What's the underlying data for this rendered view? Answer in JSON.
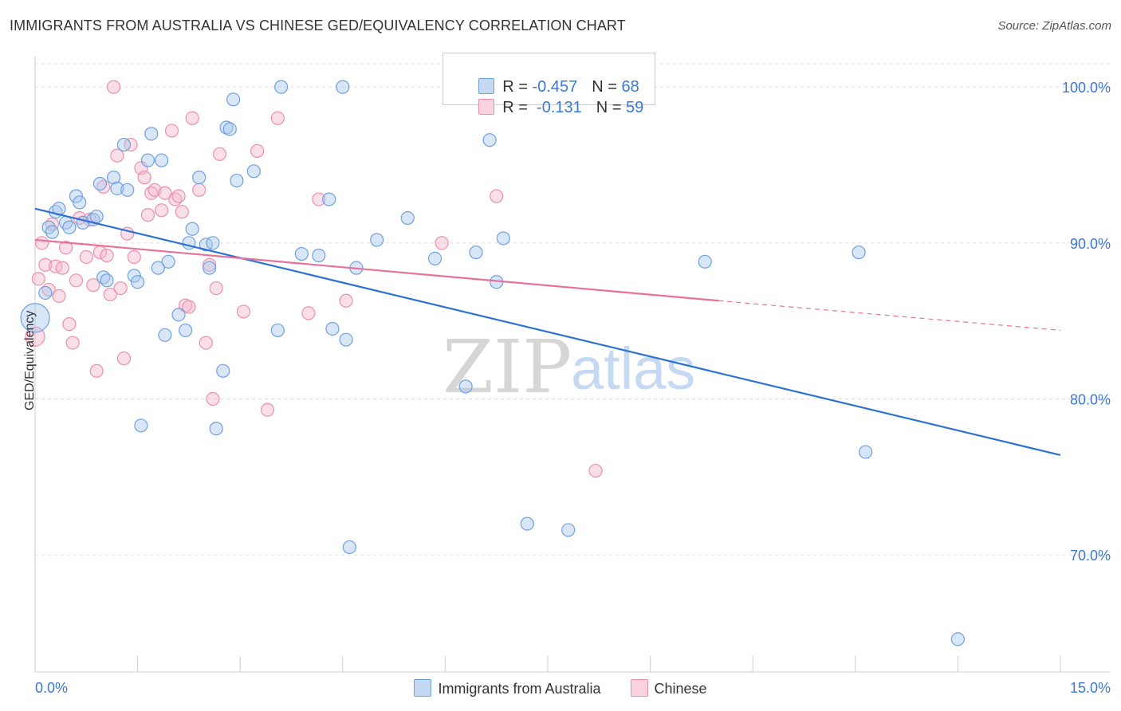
{
  "title": "IMMIGRANTS FROM AUSTRALIA VS CHINESE GED/EQUIVALENCY CORRELATION CHART",
  "source": "Source: ZipAtlas.com",
  "watermark": {
    "zip": "ZIP",
    "atlas": "atlas"
  },
  "legend": {
    "rows": [
      {
        "r_label": "R = ",
        "r_value": "-0.457",
        "n_label": "N = ",
        "n_value": "68",
        "color": "#a9c8f0"
      },
      {
        "r_label": "R = ",
        "r_value": " -0.131",
        "n_label": "N = ",
        "n_value": "59",
        "color": "#f7b8cb"
      }
    ]
  },
  "bottom_legend": [
    {
      "label": "Immigrants from Australia",
      "color": "#a9c8f0"
    },
    {
      "label": "Chinese",
      "color": "#f7b8cb"
    }
  ],
  "chart_data": {
    "type": "scatter",
    "title": "IMMIGRANTS FROM AUSTRALIA VS CHINESE GED/EQUIVALENCY CORRELATION CHART",
    "xlabel": "",
    "ylabel": "GED/Equivalency",
    "xlim": [
      0,
      15
    ],
    "ylim": [
      62.5,
      102
    ],
    "x_tick_labels": [
      "0.0%",
      "15.0%"
    ],
    "y_ticks": [
      70,
      80,
      90,
      100
    ],
    "y_tick_labels": [
      "70.0%",
      "80.0%",
      "90.0%",
      "100.0%"
    ],
    "grid": true,
    "series": [
      {
        "name": "Immigrants from Australia",
        "color": "#6fa0e0",
        "fill": "#a9c8f0",
        "line_color": "#2d72d2",
        "trend": {
          "x": [
            0,
            15
          ],
          "y": [
            92.2,
            76.4
          ]
        },
        "points": [
          [
            0.0,
            85.2
          ],
          [
            0.15,
            86.8
          ],
          [
            0.2,
            91.0
          ],
          [
            0.25,
            90.7
          ],
          [
            0.3,
            92.0
          ],
          [
            0.35,
            92.2
          ],
          [
            0.45,
            91.3
          ],
          [
            0.5,
            91.0
          ],
          [
            0.6,
            93.0
          ],
          [
            0.65,
            92.6
          ],
          [
            0.7,
            91.3
          ],
          [
            0.85,
            91.5
          ],
          [
            0.9,
            91.7
          ],
          [
            0.95,
            93.8
          ],
          [
            1.0,
            87.8
          ],
          [
            1.05,
            87.6
          ],
          [
            1.15,
            94.2
          ],
          [
            1.2,
            93.5
          ],
          [
            1.3,
            96.3
          ],
          [
            1.35,
            93.4
          ],
          [
            1.45,
            87.9
          ],
          [
            1.5,
            87.5
          ],
          [
            1.55,
            78.3
          ],
          [
            1.65,
            95.3
          ],
          [
            1.7,
            97.0
          ],
          [
            1.8,
            88.4
          ],
          [
            1.85,
            95.3
          ],
          [
            1.9,
            84.1
          ],
          [
            1.95,
            88.8
          ],
          [
            2.1,
            85.4
          ],
          [
            2.2,
            84.4
          ],
          [
            2.25,
            90.0
          ],
          [
            2.3,
            90.9
          ],
          [
            2.4,
            94.2
          ],
          [
            2.5,
            89.9
          ],
          [
            2.55,
            88.4
          ],
          [
            2.6,
            90.0
          ],
          [
            2.65,
            78.1
          ],
          [
            2.75,
            81.8
          ],
          [
            2.8,
            97.4
          ],
          [
            2.85,
            97.3
          ],
          [
            2.9,
            99.2
          ],
          [
            2.95,
            94.0
          ],
          [
            3.2,
            94.6
          ],
          [
            3.55,
            84.4
          ],
          [
            3.6,
            100.0
          ],
          [
            3.9,
            89.3
          ],
          [
            4.15,
            89.2
          ],
          [
            4.3,
            92.8
          ],
          [
            4.35,
            84.5
          ],
          [
            4.5,
            100.0
          ],
          [
            4.55,
            83.8
          ],
          [
            4.6,
            70.5
          ],
          [
            4.7,
            88.4
          ],
          [
            5.0,
            90.2
          ],
          [
            5.45,
            91.6
          ],
          [
            5.85,
            89.0
          ],
          [
            6.3,
            80.8
          ],
          [
            6.45,
            89.4
          ],
          [
            6.65,
            96.6
          ],
          [
            6.75,
            87.5
          ],
          [
            6.85,
            90.3
          ],
          [
            7.2,
            72.0
          ],
          [
            7.8,
            71.6
          ],
          [
            9.8,
            88.8
          ],
          [
            12.05,
            89.4
          ],
          [
            12.15,
            76.6
          ],
          [
            13.5,
            64.6
          ]
        ]
      },
      {
        "name": "Chinese",
        "color": "#ec8fac",
        "fill": "#f7b8cb",
        "line_color": "#e8709a",
        "trend": {
          "x": [
            0,
            10.0
          ],
          "y": [
            90.2,
            86.3
          ]
        },
        "trend_dashed": {
          "x": [
            10.0,
            15
          ],
          "y": [
            86.3,
            84.4
          ]
        },
        "points": [
          [
            0.0,
            84.0
          ],
          [
            0.05,
            87.7
          ],
          [
            0.1,
            90.0
          ],
          [
            0.15,
            88.6
          ],
          [
            0.2,
            87.0
          ],
          [
            0.25,
            91.2
          ],
          [
            0.3,
            88.5
          ],
          [
            0.35,
            86.6
          ],
          [
            0.4,
            88.4
          ],
          [
            0.45,
            89.7
          ],
          [
            0.5,
            84.8
          ],
          [
            0.55,
            83.6
          ],
          [
            0.6,
            87.6
          ],
          [
            0.65,
            91.6
          ],
          [
            0.75,
            89.1
          ],
          [
            0.8,
            91.5
          ],
          [
            0.85,
            87.3
          ],
          [
            0.9,
            81.8
          ],
          [
            0.95,
            89.4
          ],
          [
            1.0,
            93.6
          ],
          [
            1.05,
            89.2
          ],
          [
            1.1,
            86.7
          ],
          [
            1.15,
            100.0
          ],
          [
            1.2,
            95.6
          ],
          [
            1.25,
            87.1
          ],
          [
            1.3,
            82.6
          ],
          [
            1.35,
            90.6
          ],
          [
            1.4,
            96.3
          ],
          [
            1.45,
            89.1
          ],
          [
            1.55,
            94.8
          ],
          [
            1.6,
            94.2
          ],
          [
            1.65,
            91.8
          ],
          [
            1.7,
            93.2
          ],
          [
            1.75,
            93.4
          ],
          [
            1.85,
            92.1
          ],
          [
            1.9,
            93.2
          ],
          [
            2.0,
            97.2
          ],
          [
            2.05,
            92.8
          ],
          [
            2.1,
            93.0
          ],
          [
            2.15,
            92.0
          ],
          [
            2.2,
            86.0
          ],
          [
            2.25,
            85.9
          ],
          [
            2.3,
            98.0
          ],
          [
            2.4,
            93.4
          ],
          [
            2.5,
            83.6
          ],
          [
            2.55,
            88.6
          ],
          [
            2.6,
            80.0
          ],
          [
            2.65,
            87.1
          ],
          [
            2.7,
            95.7
          ],
          [
            3.05,
            85.6
          ],
          [
            3.25,
            95.9
          ],
          [
            3.4,
            79.3
          ],
          [
            3.55,
            98.0
          ],
          [
            4.0,
            85.5
          ],
          [
            4.15,
            92.8
          ],
          [
            4.55,
            86.3
          ],
          [
            5.95,
            90.0
          ],
          [
            6.75,
            93.0
          ],
          [
            8.2,
            75.4
          ]
        ]
      }
    ]
  }
}
